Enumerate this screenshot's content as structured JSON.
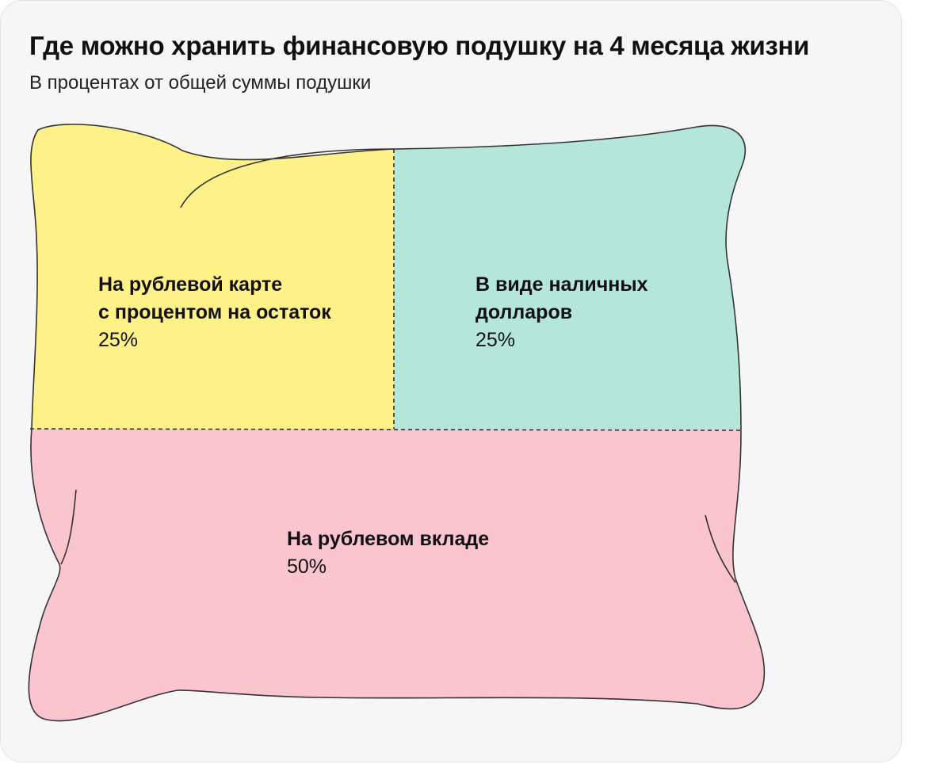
{
  "header": {
    "title": "Где можно хранить финансовую подушку на 4 месяца жизни",
    "subtitle": "В процентах от общей суммы подушки"
  },
  "colors": {
    "card_background": "#f6f6f7",
    "outline": "#333333",
    "segment_card": "#fdf188",
    "segment_cash": "#b4e6d9",
    "segment_deposit": "#fbc5d0"
  },
  "chart_data": {
    "type": "treemap",
    "title": "Где можно хранить финансовую подушку на 4 месяца жизни",
    "subtitle": "В процентах от общей суммы подушки",
    "unit": "%",
    "segments": [
      {
        "id": "card",
        "name": "На рублевой карте\nс процентом на остаток",
        "value": 25,
        "value_label": "25%",
        "color": "#fdf188"
      },
      {
        "id": "cash",
        "name": "В виде наличных\nдолларов",
        "value": 25,
        "value_label": "25%",
        "color": "#b4e6d9"
      },
      {
        "id": "deposit",
        "name": "На рублевом вкладе",
        "value": 50,
        "value_label": "50%",
        "color": "#fbc5d0"
      }
    ]
  }
}
